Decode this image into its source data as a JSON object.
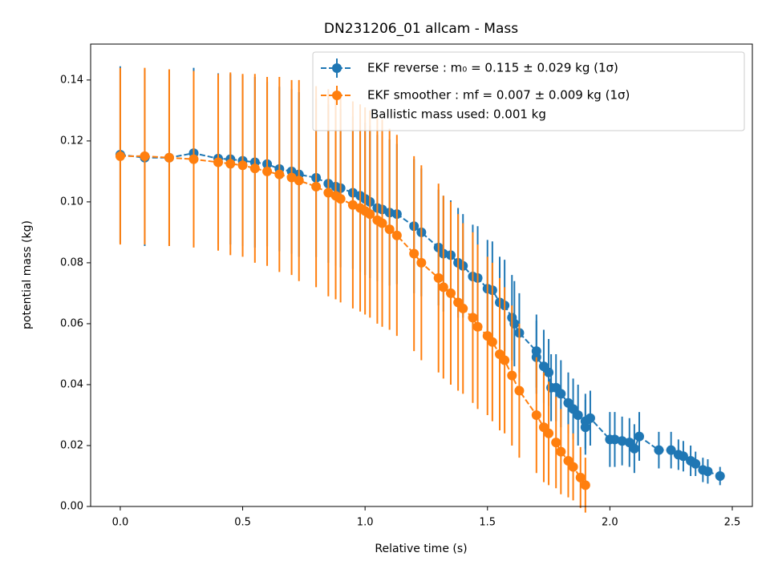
{
  "chart_data": {
    "type": "errorbar",
    "title": "DN231206_01 allcam - Mass",
    "xlabel": "Relative time (s)",
    "ylabel": "potential mass (kg)",
    "xlim": [
      -0.121,
      2.582
    ],
    "ylim": [
      0,
      0.1518
    ],
    "xticks": [
      {
        "value": 0,
        "label": "0.0"
      },
      0.5,
      {
        "value": 1,
        "label": "1.0"
      },
      1.5,
      {
        "value": 2,
        "label": "2.0"
      },
      2.5
    ],
    "yticks": [
      {
        "value": 0,
        "label": "0.00"
      },
      0.02,
      0.04,
      0.06,
      0.08,
      {
        "value": 0.1,
        "label": "0.10"
      },
      0.12,
      0.14
    ],
    "legend_loc": "upper right",
    "legend_note": "Ballistic mass used: 0.001 kg",
    "series": [
      {
        "name": "EKF reverse : m₀ =  0.115 ± 0.029 kg (1σ)",
        "color": "#1f77b4",
        "x": [
          0,
          0.1,
          0.2,
          0.3,
          0.4,
          0.45,
          0.5,
          0.55,
          0.6,
          0.65,
          0.7,
          0.73,
          0.8,
          0.85,
          0.88,
          0.9,
          0.95,
          0.98,
          1.0,
          1.02,
          1.05,
          1.07,
          1.1,
          1.13,
          1.2,
          1.23,
          1.3,
          1.32,
          1.35,
          1.38,
          1.4,
          1.44,
          1.46,
          1.5,
          1.52,
          1.55,
          1.57,
          1.6,
          1.61,
          1.63,
          1.7,
          1.7,
          1.73,
          1.75,
          1.76,
          1.78,
          1.8,
          1.83,
          1.85,
          1.87,
          1.9,
          1.9,
          1.92,
          2.0,
          2.02,
          2.05,
          2.08,
          2.1,
          2.12,
          2.2,
          2.25,
          2.28,
          2.3,
          2.33,
          2.35,
          2.38,
          2.4,
          2.45
        ],
        "values": [
          0.1155,
          0.1145,
          0.1145,
          0.116,
          0.1142,
          0.114,
          0.1135,
          0.113,
          0.1124,
          0.1108,
          0.11,
          0.109,
          0.1079,
          0.106,
          0.105,
          0.1045,
          0.103,
          0.102,
          0.101,
          0.1,
          0.098,
          0.0975,
          0.0965,
          0.096,
          0.092,
          0.09,
          0.085,
          0.083,
          0.0825,
          0.08,
          0.079,
          0.0755,
          0.075,
          0.0715,
          0.071,
          0.067,
          0.066,
          0.062,
          0.06,
          0.057,
          0.051,
          0.049,
          0.046,
          0.044,
          0.039,
          0.039,
          0.037,
          0.034,
          0.032,
          0.03,
          0.028,
          0.026,
          0.029,
          0.022,
          0.022,
          0.0215,
          0.021,
          0.019,
          0.023,
          0.0185,
          0.0185,
          0.017,
          0.0165,
          0.015,
          0.014,
          0.012,
          0.0115,
          0.01
        ],
        "errors": [
          0.029,
          0.029,
          0.029,
          0.028,
          0.028,
          0.028,
          0.028,
          0.028,
          0.027,
          0.027,
          0.027,
          0.027,
          0.026,
          0.026,
          0.026,
          0.026,
          0.025,
          0.025,
          0.025,
          0.025,
          0.024,
          0.024,
          0.024,
          0.023,
          0.022,
          0.021,
          0.019,
          0.019,
          0.018,
          0.018,
          0.017,
          0.017,
          0.017,
          0.016,
          0.016,
          0.015,
          0.015,
          0.014,
          0.014,
          0.013,
          0.012,
          0.012,
          0.012,
          0.011,
          0.011,
          0.011,
          0.011,
          0.01,
          0.01,
          0.01,
          0.009,
          0.009,
          0.009,
          0.009,
          0.009,
          0.008,
          0.008,
          0.008,
          0.008,
          0.006,
          0.006,
          0.005,
          0.005,
          0.005,
          0.004,
          0.004,
          0.004,
          0.003
        ]
      },
      {
        "name": "EKF smoother : mf =  0.007 ± 0.009 kg (1σ)",
        "color": "#ff7f0e",
        "x": [
          0,
          0.1,
          0.2,
          0.3,
          0.4,
          0.45,
          0.5,
          0.55,
          0.6,
          0.65,
          0.7,
          0.73,
          0.8,
          0.85,
          0.88,
          0.9,
          0.95,
          0.98,
          1.0,
          1.02,
          1.05,
          1.07,
          1.1,
          1.13,
          1.2,
          1.23,
          1.3,
          1.32,
          1.35,
          1.38,
          1.4,
          1.44,
          1.46,
          1.5,
          1.52,
          1.55,
          1.57,
          1.6,
          1.63,
          1.7,
          1.73,
          1.75,
          1.78,
          1.8,
          1.83,
          1.85,
          1.88,
          1.9
        ],
        "values": [
          0.115,
          0.115,
          0.1145,
          0.114,
          0.113,
          0.1125,
          0.112,
          0.111,
          0.11,
          0.109,
          0.108,
          0.107,
          0.105,
          0.103,
          0.102,
          0.101,
          0.099,
          0.098,
          0.097,
          0.096,
          0.094,
          0.093,
          0.091,
          0.089,
          0.083,
          0.08,
          0.075,
          0.072,
          0.07,
          0.067,
          0.065,
          0.062,
          0.059,
          0.056,
          0.054,
          0.05,
          0.048,
          0.043,
          0.038,
          0.03,
          0.026,
          0.024,
          0.021,
          0.018,
          0.015,
          0.013,
          0.0095,
          0.007
        ],
        "errors": [
          0.029,
          0.029,
          0.029,
          0.029,
          0.029,
          0.03,
          0.03,
          0.031,
          0.031,
          0.032,
          0.032,
          0.033,
          0.033,
          0.034,
          0.034,
          0.034,
          0.034,
          0.034,
          0.034,
          0.034,
          0.034,
          0.034,
          0.033,
          0.033,
          0.032,
          0.032,
          0.031,
          0.03,
          0.03,
          0.029,
          0.028,
          0.028,
          0.027,
          0.026,
          0.026,
          0.025,
          0.024,
          0.023,
          0.022,
          0.019,
          0.018,
          0.017,
          0.015,
          0.014,
          0.012,
          0.011,
          0.01,
          0.009
        ]
      }
    ]
  }
}
